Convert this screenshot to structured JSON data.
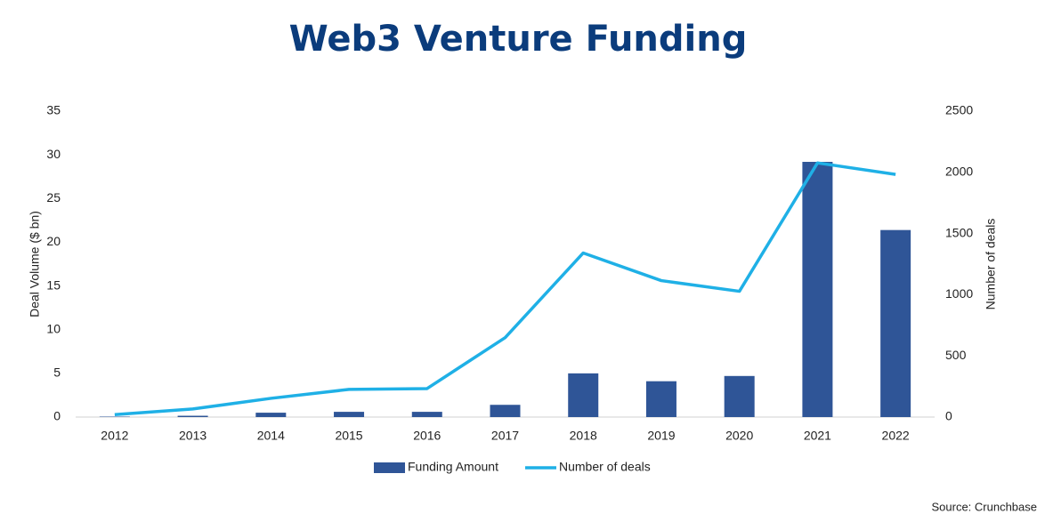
{
  "chart_data": {
    "type": "combo",
    "title": "Web3 Venture Funding",
    "categories": [
      "2012",
      "2013",
      "2014",
      "2015",
      "2016",
      "2017",
      "2018",
      "2019",
      "2020",
      "2021",
      "2022"
    ],
    "series": [
      {
        "name": "Funding Amount",
        "type": "bar",
        "color": "#2f5597",
        "values": [
          0.05,
          0.15,
          0.5,
          0.6,
          0.6,
          1.4,
          5.0,
          4.1,
          4.7,
          29.2,
          21.4
        ]
      },
      {
        "name": "Number of deals",
        "type": "line",
        "axis": "y2",
        "color": "#1fb0e6",
        "values": [
          20,
          66,
          153,
          226,
          233,
          649,
          1341,
          1115,
          1028,
          2077,
          1983
        ]
      }
    ],
    "ylabel": "Deal Volume ($ bn)",
    "y2label": "Number of deals",
    "ylim": [
      0,
      35
    ],
    "yticks": [
      0,
      5,
      10,
      15,
      20,
      25,
      30,
      35
    ],
    "y2lim": [
      0,
      2500
    ],
    "y2ticks": [
      0,
      500,
      1000,
      1500,
      2000,
      2500
    ],
    "grid": false,
    "legend": "bottom",
    "source": "Source: Crunchbase"
  }
}
